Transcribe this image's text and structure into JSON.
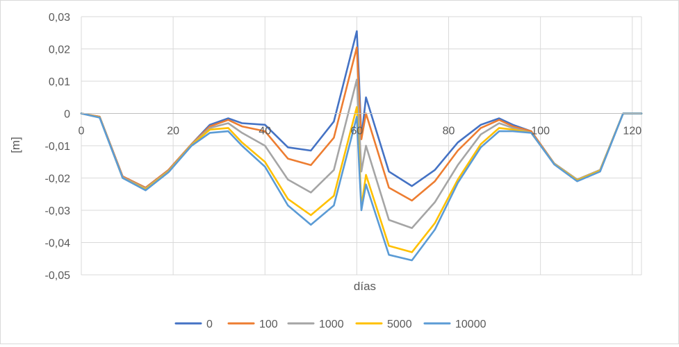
{
  "chart_data": {
    "type": "line",
    "title": "",
    "xlabel": "días",
    "ylabel": "[m]",
    "xlim": [
      0,
      122
    ],
    "ylim": [
      -0.05,
      0.03
    ],
    "x_ticks": [
      0,
      20,
      40,
      60,
      80,
      100,
      120
    ],
    "x_tick_labels": [
      "0",
      "20",
      "40",
      "60",
      "80",
      "100",
      "120"
    ],
    "y_ticks": [
      0.03,
      0.02,
      0.01,
      0,
      -0.01,
      -0.02,
      -0.03,
      -0.04,
      -0.05
    ],
    "y_tick_labels": [
      "0,03",
      "0,02",
      "0,01",
      "0",
      "-0,01",
      "-0,02",
      "-0,03",
      "-0,04",
      "-0,05"
    ],
    "grid": true,
    "legend_position": "bottom",
    "x": [
      0,
      4,
      9,
      14,
      19,
      24,
      28,
      32,
      35,
      40,
      45,
      50,
      55,
      60,
      60.5,
      61,
      62,
      67,
      72,
      77,
      82,
      87,
      91,
      94,
      98,
      103,
      108,
      113,
      118,
      122
    ],
    "series": [
      {
        "name": "0",
        "color": "#4472C4",
        "values": [
          0,
          -0.001,
          -0.0195,
          -0.023,
          -0.0175,
          -0.0095,
          -0.0035,
          -0.0015,
          -0.003,
          -0.0035,
          -0.0105,
          -0.0115,
          -0.0025,
          0.0255,
          0.01,
          -0.0075,
          0.005,
          -0.018,
          -0.0225,
          -0.0175,
          -0.009,
          -0.0035,
          -0.0015,
          -0.0035,
          -0.0055,
          -0.0155,
          -0.0205,
          -0.0175,
          0,
          0
        ]
      },
      {
        "name": "100",
        "color": "#ED7D31",
        "values": [
          0,
          -0.001,
          -0.0195,
          -0.023,
          -0.0175,
          -0.0095,
          -0.004,
          -0.002,
          -0.004,
          -0.0055,
          -0.014,
          -0.016,
          -0.0075,
          0.0205,
          0.005,
          -0.008,
          0,
          -0.023,
          -0.027,
          -0.021,
          -0.0115,
          -0.0045,
          -0.002,
          -0.004,
          -0.0055,
          -0.0155,
          -0.0205,
          -0.0175,
          0,
          0
        ]
      },
      {
        "name": "1000",
        "color": "#A5A5A5",
        "values": [
          0,
          -0.0012,
          -0.0198,
          -0.0233,
          -0.0178,
          -0.0097,
          -0.0045,
          -0.003,
          -0.006,
          -0.01,
          -0.0205,
          -0.0245,
          -0.0175,
          0.0105,
          -0.003,
          -0.018,
          -0.01,
          -0.033,
          -0.0355,
          -0.0275,
          -0.016,
          -0.0065,
          -0.003,
          -0.0045,
          -0.006,
          -0.0155,
          -0.0205,
          -0.0175,
          0,
          0
        ]
      },
      {
        "name": "5000",
        "color": "#FFC000",
        "values": [
          0,
          -0.0012,
          -0.02,
          -0.0235,
          -0.018,
          -0.0098,
          -0.005,
          -0.0045,
          -0.009,
          -0.015,
          -0.0265,
          -0.0315,
          -0.0255,
          0.002,
          -0.012,
          -0.029,
          -0.019,
          -0.041,
          -0.043,
          -0.034,
          -0.0205,
          -0.0095,
          -0.0045,
          -0.005,
          -0.006,
          -0.0157,
          -0.0207,
          -0.0177,
          0,
          0
        ]
      },
      {
        "name": "10000",
        "color": "#5B9BD5",
        "values": [
          0,
          -0.0013,
          -0.02,
          -0.0238,
          -0.0182,
          -0.01,
          -0.006,
          -0.0055,
          -0.01,
          -0.0165,
          -0.0285,
          -0.0345,
          -0.0285,
          -0.001,
          -0.016,
          -0.03,
          -0.022,
          -0.0438,
          -0.0455,
          -0.036,
          -0.0215,
          -0.0105,
          -0.0055,
          -0.0055,
          -0.006,
          -0.0158,
          -0.021,
          -0.018,
          0,
          0
        ]
      }
    ]
  }
}
